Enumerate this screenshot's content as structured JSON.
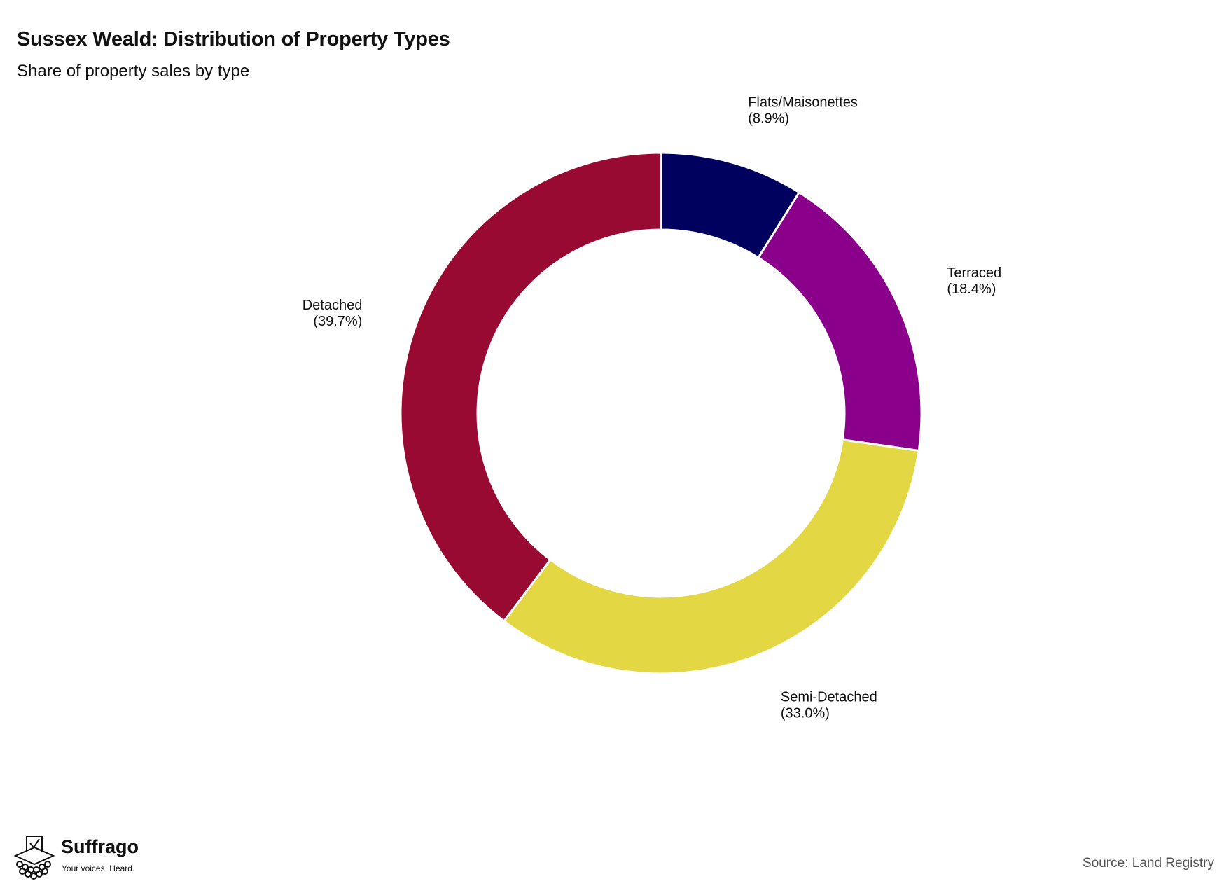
{
  "header": {
    "title": "Sussex Weald: Distribution of Property Types",
    "subtitle": "Share of property sales by type"
  },
  "footer": {
    "source": "Source: Land Registry",
    "brand_name": "Suffrago",
    "brand_tagline": "Your voices. Heard."
  },
  "chart_data": {
    "type": "pie",
    "variant": "donut",
    "title": "Sussex Weald: Distribution of Property Types",
    "subtitle": "Share of property sales by type",
    "start": "12 o'clock, clockwise",
    "slices": [
      {
        "label": "Flats/Maisonettes",
        "value": 8.9,
        "value_label": "(8.9%)",
        "color": "#00005e"
      },
      {
        "label": "Terraced",
        "value": 18.4,
        "value_label": "(18.4%)",
        "color": "#8b008b"
      },
      {
        "label": "Semi-Detached",
        "value": 33.0,
        "value_label": "(33.0%)",
        "color": "#e3d743"
      },
      {
        "label": "Detached",
        "value": 39.7,
        "value_label": "(39.7%)",
        "color": "#990a32"
      }
    ]
  }
}
